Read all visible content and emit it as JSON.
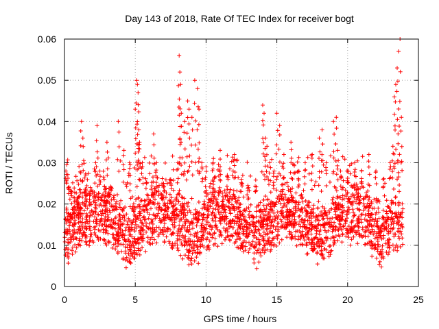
{
  "chart_data": {
    "type": "scatter",
    "title": "Day 143 of 2018, Rate Of TEC Index for receiver bogt",
    "xlabel": "GPS time / hours",
    "ylabel": "ROTI / TECUs",
    "xlim": [
      0,
      25
    ],
    "ylim": [
      0,
      0.06
    ],
    "x_ticks": [
      0,
      5,
      10,
      15,
      20,
      25
    ],
    "y_ticks": [
      0,
      0.01,
      0.02,
      0.03,
      0.04,
      0.05,
      0.06
    ],
    "x_tick_labels": [
      "0",
      "5",
      "10",
      "15",
      "20",
      "25"
    ],
    "y_tick_labels": [
      "0",
      "0.01",
      "0.02",
      "0.03",
      "0.04",
      "0.05",
      "0.06"
    ],
    "grid": true,
    "marker": "+",
    "color": "#ff0000",
    "series": [
      {
        "name": "ROTI",
        "description_range": [
          0,
          23.9
        ],
        "x": [
          0.1,
          0.2,
          0.3,
          0.5,
          0.7,
          1.0,
          1.2,
          1.3,
          1.5,
          1.8,
          2.2,
          2.3,
          2.5,
          2.8,
          3.0,
          3.3,
          3.8,
          4.2,
          4.6,
          5.0,
          5.1,
          5.15,
          5.2,
          5.25,
          5.3,
          5.5,
          5.8,
          6.3,
          6.5,
          7.0,
          7.5,
          8.0,
          8.1,
          8.15,
          8.2,
          8.25,
          8.5,
          8.7,
          8.8,
          9.0,
          9.2,
          9.4,
          9.5,
          9.7,
          10.0,
          10.5,
          11.0,
          11.5,
          12.0,
          12.5,
          13.0,
          13.5,
          14.0,
          14.1,
          14.2,
          14.3,
          14.5,
          14.8,
          15.0,
          15.2,
          15.5,
          16.0,
          16.5,
          17.0,
          17.5,
          18.0,
          18.2,
          18.5,
          19.0,
          19.2,
          19.3,
          19.5,
          20.0,
          20.5,
          21.0,
          21.5,
          22.0,
          22.5,
          23.0,
          23.2,
          23.3,
          23.4,
          23.5,
          23.6,
          23.7,
          23.8
        ],
        "y": [
          0.028,
          0.03,
          0.024,
          0.022,
          0.018,
          0.02,
          0.04,
          0.036,
          0.022,
          0.02,
          0.03,
          0.039,
          0.028,
          0.026,
          0.035,
          0.024,
          0.04,
          0.033,
          0.03,
          0.043,
          0.05,
          0.049,
          0.047,
          0.038,
          0.035,
          0.03,
          0.025,
          0.037,
          0.03,
          0.025,
          0.026,
          0.03,
          0.056,
          0.052,
          0.049,
          0.042,
          0.04,
          0.045,
          0.043,
          0.041,
          0.05,
          0.048,
          0.043,
          0.03,
          0.029,
          0.03,
          0.033,
          0.027,
          0.032,
          0.026,
          0.024,
          0.023,
          0.044,
          0.042,
          0.036,
          0.034,
          0.03,
          0.028,
          0.042,
          0.039,
          0.032,
          0.035,
          0.028,
          0.03,
          0.032,
          0.036,
          0.038,
          0.03,
          0.04,
          0.041,
          0.033,
          0.028,
          0.028,
          0.03,
          0.028,
          0.032,
          0.028,
          0.026,
          0.03,
          0.034,
          0.046,
          0.049,
          0.053,
          0.057,
          0.06,
          0.041
        ]
      }
    ]
  }
}
